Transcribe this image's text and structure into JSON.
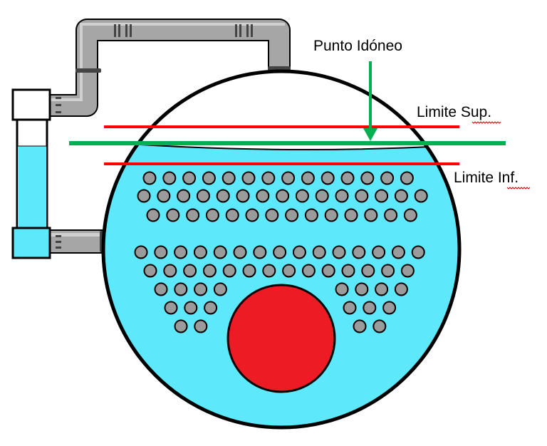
{
  "labels": {
    "optimal_point": "Punto Idóneo",
    "upper_limit": "Limite Sup.",
    "lower_limit": "Limite Inf."
  },
  "colors": {
    "water": "#5ee8fc",
    "furnace": "#ed1c24",
    "tube": "#9b9b9b",
    "upper_limit_line": "#ff0000",
    "lower_limit_line": "#ff0000",
    "optimal_level_line": "#00b050",
    "pipe": "#a6a6a6",
    "gauge_cap": "#ffffff",
    "outline": "#000000"
  },
  "icons": {
    "upper_pipe": "elbow-pipe-icon",
    "lower_pipe": "straight-pipe-icon",
    "level_gauge": "sight-glass-icon"
  }
}
